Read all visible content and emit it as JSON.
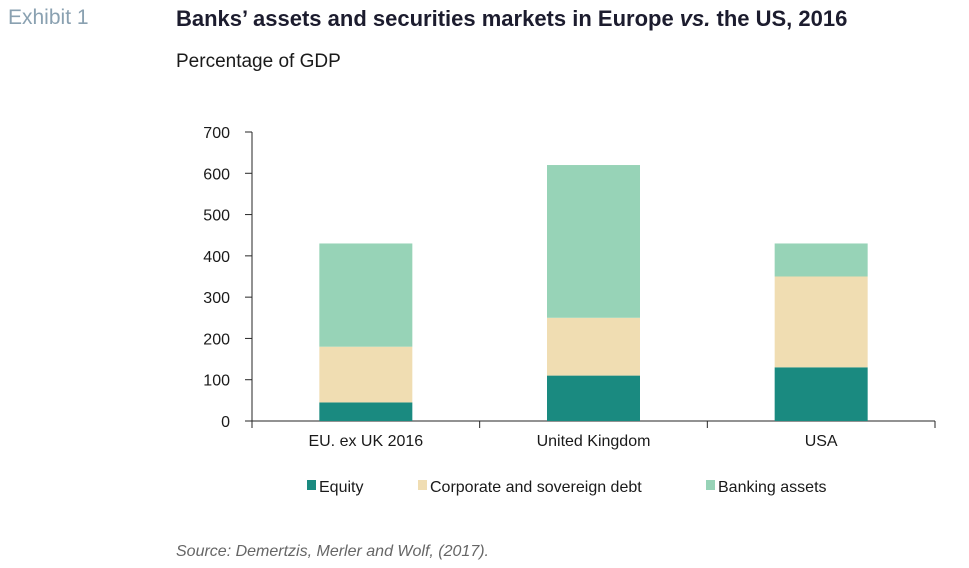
{
  "header": {
    "exhibit": "Exhibit 1",
    "title_main": "Banks’ assets and securities markets in Europe ",
    "title_italic": "vs.",
    "title_tail": " the US, 2016",
    "subtitle": "Percentage of GDP"
  },
  "source": "Source: Demertzis, Merler and Wolf, (2017).",
  "colors": {
    "equity": "#1a8a80",
    "debt": "#f0ddb2",
    "banking": "#97d3b7",
    "axis": "#262626"
  },
  "chart_data": {
    "type": "bar",
    "stacked": true,
    "categories": [
      "EU. ex UK 2016",
      "United Kingdom",
      "USA"
    ],
    "series": [
      {
        "name": "Equity",
        "values": [
          45,
          110,
          130
        ]
      },
      {
        "name": "Corporate and sovereign debt",
        "values": [
          135,
          140,
          220
        ]
      },
      {
        "name": "Banking assets",
        "values": [
          250,
          370,
          80
        ]
      }
    ],
    "ylim": [
      0,
      700
    ],
    "yticks": [
      "0",
      "100",
      "200",
      "300",
      "400",
      "500",
      "600",
      "700"
    ],
    "grid": false,
    "legend": "bottom"
  }
}
